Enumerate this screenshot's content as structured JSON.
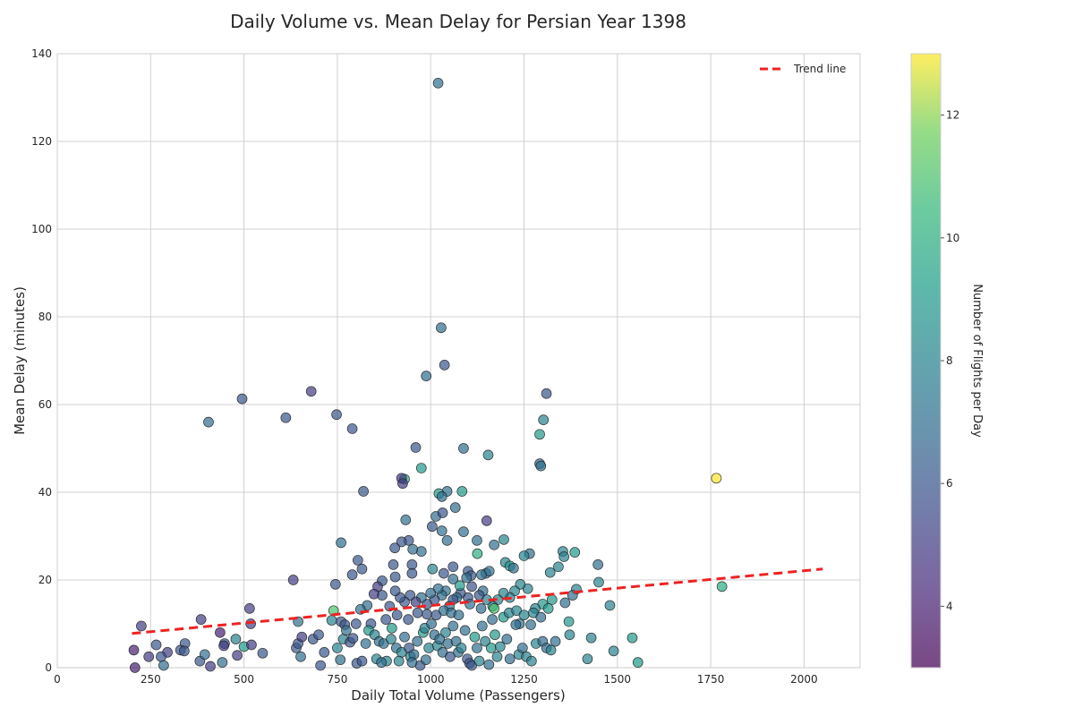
{
  "chart_data": {
    "type": "scatter",
    "title": "Daily Volume vs. Mean Delay for Persian Year 1398",
    "xlabel": "Daily Total Volume (Passengers)",
    "ylabel": "Mean Delay (minutes)",
    "xlim": [
      0,
      2150
    ],
    "ylim": [
      0,
      140
    ],
    "xticks": [
      0,
      250,
      500,
      750,
      1000,
      1250,
      1500,
      1750,
      2000
    ],
    "yticks": [
      0,
      20,
      40,
      60,
      80,
      100,
      120,
      140
    ],
    "grid": true,
    "legend": {
      "position": "top-right",
      "entries": [
        "Trend line"
      ]
    },
    "trend_line": {
      "x": [
        200,
        2050
      ],
      "y": [
        7.8,
        22.5
      ],
      "color": "#ee2222",
      "style": "dashed"
    },
    "colorbar": {
      "label": "Number of Flights per Day",
      "range": [
        3,
        13
      ],
      "ticks": [
        4,
        6,
        8,
        10,
        12
      ],
      "colormap": "viridis"
    },
    "marker_alpha": 0.7,
    "points": [
      [
        1020,
        133.3,
        7
      ],
      [
        1028,
        77.5,
        7
      ],
      [
        988,
        66.5,
        7
      ],
      [
        1037,
        69,
        6
      ],
      [
        1310,
        62.5,
        6
      ],
      [
        1302,
        56.5,
        8
      ],
      [
        1292,
        53.2,
        9
      ],
      [
        1292,
        46.5,
        7
      ],
      [
        1295,
        46,
        7
      ],
      [
        1154,
        48.5,
        8
      ],
      [
        1088,
        50,
        7
      ],
      [
        960,
        50.2,
        6
      ],
      [
        975,
        45.5,
        9
      ],
      [
        930,
        43,
        10
      ],
      [
        922,
        43.2,
        5
      ],
      [
        925,
        42,
        5
      ],
      [
        1084,
        40.2,
        9
      ],
      [
        1044,
        40.2,
        7
      ],
      [
        1022,
        39.7,
        9
      ],
      [
        1030,
        39,
        7
      ],
      [
        1765,
        43.2,
        13
      ],
      [
        1780,
        18.5,
        10
      ],
      [
        680,
        63,
        5
      ],
      [
        495,
        61.3,
        6
      ],
      [
        405,
        56,
        7
      ],
      [
        612,
        57,
        6
      ],
      [
        748,
        57.7,
        6
      ],
      [
        790,
        54.5,
        6
      ],
      [
        820,
        40.2,
        6
      ],
      [
        1150,
        33.5,
        5
      ],
      [
        1066,
        36.5,
        7
      ],
      [
        1014,
        34.5,
        7
      ],
      [
        1032,
        35.3,
        6
      ],
      [
        1004,
        32.2,
        6
      ],
      [
        933,
        33.7,
        7
      ],
      [
        1088,
        31,
        7
      ],
      [
        1030,
        31.2,
        7
      ],
      [
        1124,
        29,
        7
      ],
      [
        1044,
        29,
        7
      ],
      [
        1196,
        29.2,
        8
      ],
      [
        941,
        29,
        6
      ],
      [
        922,
        28.7,
        6
      ],
      [
        975,
        26.5,
        7
      ],
      [
        952,
        27,
        7
      ],
      [
        904,
        27.3,
        6
      ],
      [
        1170,
        28,
        7
      ],
      [
        760,
        28.5,
        7
      ],
      [
        1060,
        23,
        6
      ],
      [
        1125,
        26,
        10
      ],
      [
        1265,
        26,
        7
      ],
      [
        1250,
        25.5,
        8
      ],
      [
        1354,
        26.5,
        8
      ],
      [
        1357,
        25.3,
        8
      ],
      [
        1386,
        26.3,
        9
      ],
      [
        1200,
        24,
        8
      ],
      [
        1212,
        23.2,
        9
      ],
      [
        1222,
        22.7,
        7
      ],
      [
        1448,
        23.5,
        7
      ],
      [
        1342,
        23,
        8
      ],
      [
        1320,
        21.7,
        8
      ],
      [
        805,
        24.5,
        6
      ],
      [
        816,
        22.5,
        6
      ],
      [
        950,
        23.5,
        6
      ],
      [
        900,
        23.5,
        6
      ],
      [
        1005,
        22.5,
        8
      ],
      [
        1100,
        22,
        6
      ],
      [
        1108,
        21,
        6
      ],
      [
        1035,
        21.5,
        6
      ],
      [
        1148,
        21.5,
        7
      ],
      [
        1157,
        22,
        7
      ],
      [
        1136,
        21.2,
        7
      ],
      [
        1096,
        20.5,
        7
      ],
      [
        1060,
        20.2,
        7
      ],
      [
        950,
        21.5,
        6
      ],
      [
        905,
        20.7,
        6
      ],
      [
        790,
        21.2,
        6
      ],
      [
        870,
        19.8,
        6
      ],
      [
        632,
        20,
        5
      ],
      [
        1450,
        19.5,
        8
      ],
      [
        1390,
        17.9,
        8
      ],
      [
        1380,
        16.5,
        7
      ],
      [
        1360,
        14.8,
        7
      ],
      [
        1480,
        14.2,
        8
      ],
      [
        1325,
        15.5,
        9
      ],
      [
        1300,
        14.5,
        9
      ],
      [
        1280,
        13.5,
        8
      ],
      [
        1260,
        18,
        8
      ],
      [
        1240,
        19,
        8
      ],
      [
        1225,
        17.5,
        8
      ],
      [
        1212,
        16,
        8
      ],
      [
        1195,
        17,
        8
      ],
      [
        1180,
        15.5,
        8
      ],
      [
        1166,
        14,
        8
      ],
      [
        1170,
        13.5,
        11
      ],
      [
        1150,
        15.5,
        8
      ],
      [
        1140,
        17.5,
        7
      ],
      [
        1130,
        16.5,
        6
      ],
      [
        1110,
        18.5,
        6
      ],
      [
        1100,
        16,
        6
      ],
      [
        1080,
        17,
        6
      ],
      [
        1078,
        18.7,
        9
      ],
      [
        1070,
        16,
        7
      ],
      [
        1060,
        15.5,
        6
      ],
      [
        1050,
        14,
        7
      ],
      [
        1040,
        17.5,
        7
      ],
      [
        1030,
        16.5,
        7
      ],
      [
        1020,
        18,
        7
      ],
      [
        1010,
        15.5,
        6
      ],
      [
        1000,
        17,
        7
      ],
      [
        990,
        14.5,
        6
      ],
      [
        975,
        16,
        7
      ],
      [
        960,
        15,
        5
      ],
      [
        945,
        16.5,
        6
      ],
      [
        930,
        15,
        6
      ],
      [
        918,
        16,
        6
      ],
      [
        905,
        17.5,
        6
      ],
      [
        890,
        14,
        6
      ],
      [
        870,
        16.5,
        6
      ],
      [
        858,
        18.5,
        5
      ],
      [
        848,
        16.8,
        5
      ],
      [
        830,
        14.2,
        7
      ],
      [
        812,
        13.3,
        7
      ],
      [
        745,
        19,
        6
      ],
      [
        740,
        13,
        11
      ],
      [
        735,
        10.8,
        8
      ],
      [
        515,
        13.5,
        5
      ],
      [
        645,
        10.5,
        7
      ],
      [
        760,
        10.5,
        6
      ],
      [
        770,
        9.8,
        6
      ],
      [
        800,
        10,
        6
      ],
      [
        840,
        10,
        6
      ],
      [
        880,
        11,
        6
      ],
      [
        910,
        12,
        6
      ],
      [
        940,
        11,
        6
      ],
      [
        965,
        12.5,
        6
      ],
      [
        990,
        12.2,
        6
      ],
      [
        1015,
        12,
        6
      ],
      [
        1035,
        13,
        7
      ],
      [
        1055,
        12.5,
        7
      ],
      [
        1075,
        12,
        7
      ],
      [
        1105,
        14.5,
        7
      ],
      [
        1135,
        13.5,
        7
      ],
      [
        1165,
        11,
        7
      ],
      [
        1195,
        11.5,
        9
      ],
      [
        1210,
        12.5,
        8
      ],
      [
        1230,
        13,
        8
      ],
      [
        1250,
        12,
        8
      ],
      [
        1275,
        12.5,
        8
      ],
      [
        1295,
        11.5,
        7
      ],
      [
        1315,
        13.5,
        9
      ],
      [
        1370,
        10.5,
        9
      ],
      [
        1238,
        10,
        7
      ],
      [
        1268,
        9.8,
        7
      ],
      [
        385,
        11,
        5
      ],
      [
        225,
        9.5,
        5
      ],
      [
        518,
        10,
        5
      ],
      [
        436,
        8,
        4
      ],
      [
        448,
        5.5,
        6
      ],
      [
        446,
        5,
        5
      ],
      [
        265,
        5.2,
        6
      ],
      [
        342,
        5.5,
        6
      ],
      [
        330,
        4,
        6
      ],
      [
        340,
        3.8,
        6
      ],
      [
        295,
        3.5,
        5
      ],
      [
        278,
        2.5,
        6
      ],
      [
        245,
        2.5,
        5
      ],
      [
        205,
        4,
        4
      ],
      [
        208,
        0,
        4
      ],
      [
        285,
        0.5,
        7
      ],
      [
        382,
        1.5,
        6
      ],
      [
        395,
        3,
        7
      ],
      [
        410,
        0.3,
        5
      ],
      [
        442,
        1.2,
        7
      ],
      [
        482,
        2.8,
        5
      ],
      [
        478,
        6.5,
        8
      ],
      [
        500,
        4.8,
        9
      ],
      [
        520,
        5.2,
        5
      ],
      [
        550,
        3.3,
        6
      ],
      [
        640,
        4.5,
        6
      ],
      [
        645,
        5.5,
        6
      ],
      [
        655,
        7,
        5
      ],
      [
        652,
        2.5,
        7
      ],
      [
        685,
        6.5,
        6
      ],
      [
        700,
        7.5,
        6
      ],
      [
        705,
        0.5,
        6
      ],
      [
        715,
        3.5,
        6
      ],
      [
        750,
        4.5,
        8
      ],
      [
        758,
        1.8,
        7
      ],
      [
        766,
        6.5,
        8
      ],
      [
        774,
        8.5,
        7
      ],
      [
        784,
        5.8,
        6
      ],
      [
        792,
        6.7,
        6
      ],
      [
        802,
        1,
        6
      ],
      [
        816,
        1.5,
        6
      ],
      [
        826,
        5.5,
        7
      ],
      [
        834,
        8.5,
        9
      ],
      [
        850,
        7.5,
        8
      ],
      [
        862,
        6,
        7
      ],
      [
        874,
        5.5,
        7
      ],
      [
        882,
        1.5,
        8
      ],
      [
        894,
        6.5,
        8
      ],
      [
        896,
        9,
        9
      ],
      [
        908,
        4.5,
        7
      ],
      [
        922,
        3.5,
        8
      ],
      [
        930,
        7,
        7
      ],
      [
        942,
        4.5,
        6
      ],
      [
        946,
        2.5,
        8
      ],
      [
        955,
        3,
        7
      ],
      [
        964,
        6,
        7
      ],
      [
        972,
        0.5,
        6
      ],
      [
        980,
        8,
        9
      ],
      [
        984,
        9,
        8
      ],
      [
        995,
        4.5,
        8
      ],
      [
        1002,
        10,
        7
      ],
      [
        1010,
        7.5,
        7
      ],
      [
        1018,
        5,
        8
      ],
      [
        1024,
        6.5,
        7
      ],
      [
        1032,
        3.5,
        7
      ],
      [
        1040,
        8,
        8
      ],
      [
        1046,
        5.5,
        7
      ],
      [
        1052,
        2.5,
        6
      ],
      [
        1060,
        9.5,
        7
      ],
      [
        1068,
        6,
        7
      ],
      [
        1074,
        3.5,
        7
      ],
      [
        1082,
        4.5,
        8
      ],
      [
        1092,
        8.5,
        7
      ],
      [
        1098,
        2,
        6
      ],
      [
        1104,
        1,
        6
      ],
      [
        1110,
        0.5,
        6
      ],
      [
        1118,
        7,
        9
      ],
      [
        1124,
        4.5,
        7
      ],
      [
        1130,
        1.5,
        8
      ],
      [
        1138,
        9.5,
        7
      ],
      [
        1146,
        6,
        8
      ],
      [
        1156,
        0.7,
        7
      ],
      [
        1162,
        4.5,
        9
      ],
      [
        1172,
        7.5,
        9
      ],
      [
        1178,
        2.5,
        8
      ],
      [
        1186,
        4.8,
        8
      ],
      [
        1204,
        6.5,
        7
      ],
      [
        1212,
        2,
        7
      ],
      [
        1228,
        9.8,
        7
      ],
      [
        1236,
        3,
        8
      ],
      [
        1246,
        4.5,
        7
      ],
      [
        1256,
        2.5,
        8
      ],
      [
        1270,
        1.5,
        8
      ],
      [
        1282,
        5.5,
        8
      ],
      [
        1300,
        6,
        7
      ],
      [
        1310,
        4.5,
        7
      ],
      [
        1322,
        4,
        8
      ],
      [
        1334,
        6,
        7
      ],
      [
        1372,
        7.5,
        8
      ],
      [
        1420,
        2,
        8
      ],
      [
        1430,
        6.8,
        8
      ],
      [
        1490,
        3.8,
        8
      ],
      [
        1540,
        6.8,
        9
      ],
      [
        1555,
        1.2,
        9
      ],
      [
        855,
        2,
        8
      ],
      [
        868,
        1.2,
        7
      ],
      [
        915,
        1.5,
        8
      ],
      [
        950,
        1.2,
        7
      ],
      [
        987,
        1.8,
        7
      ]
    ]
  }
}
